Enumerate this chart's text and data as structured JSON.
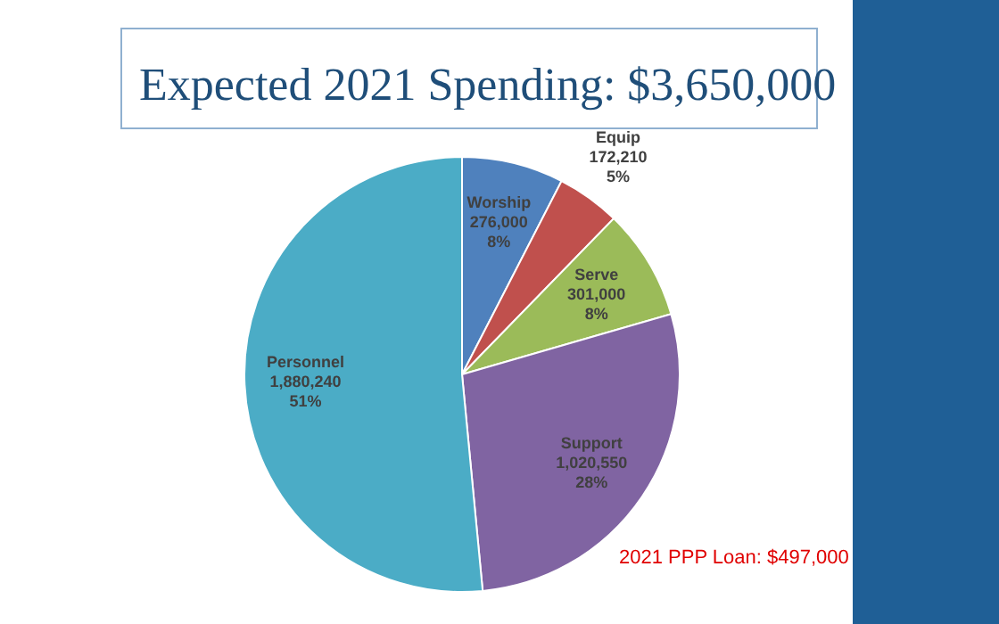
{
  "chart_data": {
    "type": "pie",
    "title": "Expected 2021 Spending: $3,650,000",
    "categories": [
      "Worship",
      "Equip",
      "Serve",
      "Support",
      "Personnel"
    ],
    "values": [
      276000,
      172210,
      301000,
      1020550,
      1880240
    ],
    "colors": [
      "#4f81bd",
      "#c0504d",
      "#9bbb59",
      "#8064a2",
      "#4bacc6"
    ],
    "value_labels": [
      "276,000\n8%",
      "172,210\n5%",
      "301,000\n8%",
      "1,020,550\n28%",
      "1,880,240\n51%"
    ],
    "annotations": [
      "2021 PPP Loan: $497,000"
    ]
  }
}
